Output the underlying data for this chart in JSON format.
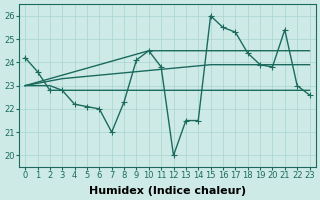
{
  "xlabel": "Humidex (Indice chaleur)",
  "xlim": [
    -0.5,
    23.5
  ],
  "ylim": [
    19.5,
    26.5
  ],
  "yticks": [
    20,
    21,
    22,
    23,
    24,
    25,
    26
  ],
  "xticks": [
    0,
    1,
    2,
    3,
    4,
    5,
    6,
    7,
    8,
    9,
    10,
    11,
    12,
    13,
    14,
    15,
    16,
    17,
    18,
    19,
    20,
    21,
    22,
    23
  ],
  "bg_color": "#ceeae7",
  "grid_color": "#aad4cf",
  "line_color": "#1a6b5e",
  "line_width": 1.0,
  "marker": "+",
  "marker_size": 4,
  "lines": [
    {
      "y": [
        24.2,
        23.6,
        22.8,
        22.8,
        22.2,
        22.1,
        22.0,
        21.0,
        22.3,
        24.1,
        24.5,
        23.8,
        20.0,
        21.5,
        21.5,
        26.0,
        25.5,
        25.3,
        24.4,
        23.9,
        23.8,
        25.4,
        23.0,
        22.6
      ],
      "marker": true
    },
    {
      "y": [
        23.0,
        23.0,
        23.0,
        22.8,
        22.8,
        22.8,
        22.8,
        22.8,
        22.8,
        22.8,
        22.8,
        22.8,
        22.8,
        22.8,
        22.8,
        22.8,
        22.8,
        22.8,
        22.8,
        22.8,
        22.8,
        22.8,
        22.8,
        22.8
      ],
      "marker": false
    },
    {
      "y": [
        23.0,
        23.1,
        23.2,
        23.3,
        23.35,
        23.4,
        23.45,
        23.5,
        23.55,
        23.6,
        23.65,
        23.7,
        23.75,
        23.8,
        23.85,
        23.9,
        23.9,
        23.9,
        23.9,
        23.9,
        23.9,
        23.9,
        23.9,
        23.9
      ],
      "marker": false
    },
    {
      "y": [
        23.0,
        23.15,
        23.3,
        23.45,
        23.6,
        23.75,
        23.9,
        24.05,
        24.2,
        24.35,
        24.5,
        24.5,
        24.5,
        24.5,
        24.5,
        24.5,
        24.5,
        24.5,
        24.5,
        24.5,
        24.5,
        24.5,
        24.5,
        24.5
      ],
      "marker": false
    }
  ],
  "tick_fontsize": 6,
  "xlabel_fontsize": 8
}
